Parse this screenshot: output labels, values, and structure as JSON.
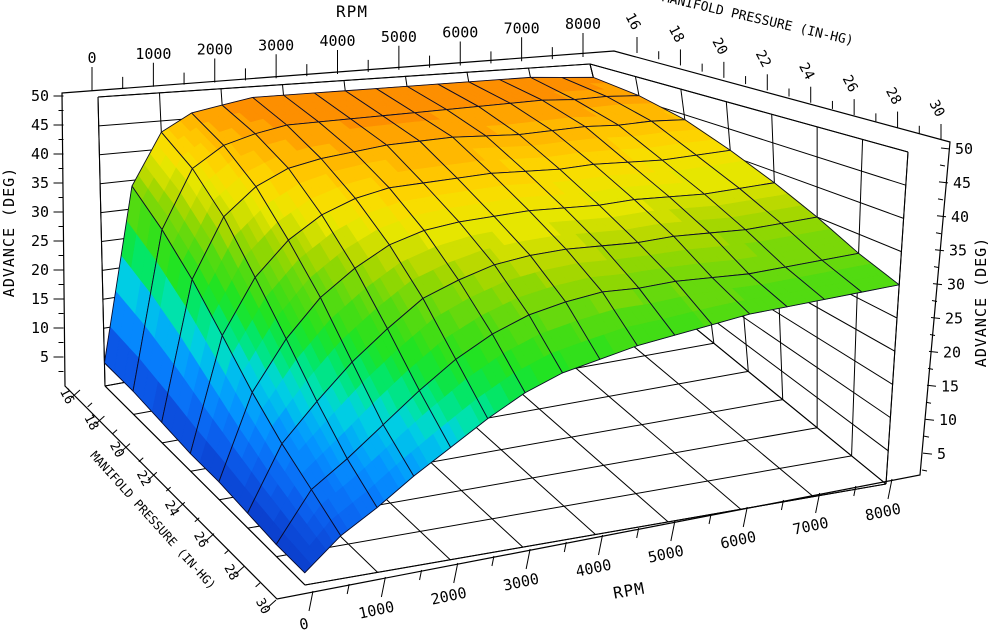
{
  "page": {
    "background": "#ffffff"
  },
  "chart_data": {
    "type": "surface3d",
    "title": "",
    "axes": {
      "rpm": {
        "label": "RPM",
        "range": [
          0,
          8000
        ],
        "major_ticks": [
          0,
          1000,
          2000,
          3000,
          4000,
          5000,
          6000,
          7000,
          8000
        ],
        "tick_labels": [
          "0",
          "1000",
          "2000",
          "3000",
          "4000",
          "5000",
          "6000",
          "7000",
          "8000"
        ],
        "minor_step": 500
      },
      "manifold_pressure": {
        "label": "MANIFOLD PRESSURE (IN-HG)",
        "range": [
          16,
          30
        ],
        "major_ticks": [
          16,
          18,
          20,
          22,
          24,
          26,
          28,
          30
        ],
        "tick_labels": [
          "16",
          "18",
          "20",
          "22",
          "24",
          "26",
          "28",
          "30"
        ],
        "minor_step": 1
      },
      "advance": {
        "label": "ADVANCE (DEG)",
        "range": [
          0,
          50
        ],
        "major_ticks": [
          5,
          10,
          15,
          20,
          25,
          30,
          35,
          40,
          45,
          50
        ],
        "tick_labels": [
          "5",
          "10",
          "15",
          "20",
          "25",
          "30",
          "35",
          "40",
          "45",
          "50"
        ],
        "minor_step": 2.5
      }
    },
    "surface": {
      "rpm_points": [
        0,
        500,
        1000,
        1500,
        2000,
        2500,
        3000,
        3500,
        4000,
        4500,
        5000,
        5500,
        6000,
        6500,
        7000,
        7500,
        8000
      ],
      "map_points": [
        16,
        18,
        20,
        22,
        24,
        26,
        28,
        30
      ],
      "advance": [
        [
          4,
          34,
          43,
          46,
          47,
          48,
          48,
          48,
          48,
          48,
          48,
          48,
          48,
          48,
          48,
          47.5,
          47
        ],
        [
          4,
          31,
          41,
          44.5,
          46,
          47,
          47,
          47,
          47,
          47,
          47,
          47,
          47,
          47,
          46.5,
          46.5,
          46
        ],
        [
          3.5,
          27,
          37,
          41.5,
          44,
          45,
          45.5,
          46,
          46,
          46,
          45.5,
          45,
          45,
          45,
          44.5,
          44.5,
          44
        ],
        [
          3,
          22,
          31,
          36.5,
          40,
          42,
          43,
          43,
          43,
          43,
          42.5,
          42,
          42,
          41.5,
          41,
          41,
          41
        ],
        [
          3,
          17,
          25,
          31,
          35,
          38,
          39.5,
          40,
          40,
          40,
          39.5,
          39,
          39,
          38.5,
          38,
          38,
          38
        ],
        [
          2.5,
          13,
          19,
          24.5,
          29,
          33,
          35,
          36.5,
          37,
          37,
          36.5,
          36,
          36,
          35.5,
          35,
          35,
          35
        ],
        [
          2,
          10,
          14,
          18.5,
          23,
          27,
          30,
          32,
          33,
          33.5,
          33,
          33,
          32.5,
          32,
          32,
          32,
          32
        ],
        [
          2,
          7,
          10.5,
          14.5,
          18,
          21.5,
          24.5,
          26.5,
          27.5,
          28.5,
          29,
          29.5,
          30,
          30,
          30,
          30,
          30
        ]
      ]
    },
    "colormap": {
      "band_size": 1.2,
      "stops": [
        [
          0,
          "#0A38C0"
        ],
        [
          2,
          "#0A3CC8"
        ],
        [
          5,
          "#0C4CDC"
        ],
        [
          8,
          "#0B60EE"
        ],
        [
          11,
          "#0878FA"
        ],
        [
          14,
          "#0496FF"
        ],
        [
          17,
          "#00B8F2"
        ],
        [
          19,
          "#00D2E0"
        ],
        [
          21,
          "#00E2AC"
        ],
        [
          23,
          "#00E670"
        ],
        [
          25,
          "#12E43C"
        ],
        [
          27,
          "#22E322"
        ],
        [
          29,
          "#3CDE16"
        ],
        [
          31,
          "#58DA10"
        ],
        [
          33,
          "#7AD808"
        ],
        [
          35,
          "#9CD600"
        ],
        [
          37,
          "#C2DA00"
        ],
        [
          39,
          "#E6E600"
        ],
        [
          41,
          "#F6E000"
        ],
        [
          43,
          "#FFD000"
        ],
        [
          45,
          "#FFB800"
        ],
        [
          47,
          "#FF9600"
        ],
        [
          48.5,
          "#F97A00"
        ],
        [
          50,
          "#F06400"
        ]
      ]
    },
    "mesh_color": "#0a0a28",
    "grid_color": "#000000",
    "frame_color": "#000000",
    "text_color": "#000000"
  },
  "labels": {
    "rpm_top": "RPM",
    "rpm_bottom": "RPM",
    "map_top": "MANIFOLD PRESSURE (IN-HG)",
    "map_bottom": "MANIFOLD PRESSURE (IN-HG)",
    "advance_left": "ADVANCE (DEG)",
    "advance_right": "ADVANCE (DEG)"
  }
}
